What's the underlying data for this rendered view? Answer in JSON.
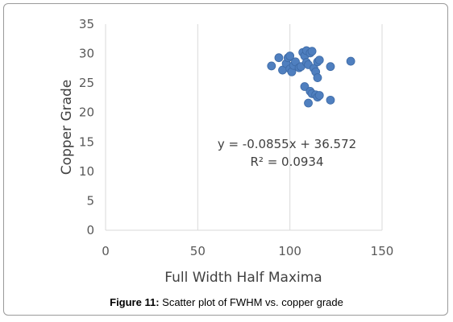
{
  "chart_data": {
    "type": "scatter",
    "xlabel": "Full Width Half Maxima",
    "ylabel": "Copper Grade",
    "xlim": [
      0,
      150
    ],
    "ylim": [
      0,
      35
    ],
    "x_ticks": [
      "0",
      "50",
      "100",
      "150"
    ],
    "y_ticks": [
      "0",
      "5",
      "10",
      "15",
      "20",
      "25",
      "30",
      "35"
    ],
    "grid": "vertical-major",
    "marker_color": "#4f7fbf",
    "equation": "y = -0.0855x + 36.572",
    "r_squared": "R² = 0.0934",
    "points": [
      {
        "x": 90,
        "y": 27.9
      },
      {
        "x": 94,
        "y": 29.3
      },
      {
        "x": 96,
        "y": 27.2
      },
      {
        "x": 98,
        "y": 28.3
      },
      {
        "x": 99,
        "y": 29.3
      },
      {
        "x": 100,
        "y": 29.6
      },
      {
        "x": 100,
        "y": 27.4
      },
      {
        "x": 101,
        "y": 26.9
      },
      {
        "x": 102,
        "y": 28.0
      },
      {
        "x": 103,
        "y": 28.6
      },
      {
        "x": 105,
        "y": 27.6
      },
      {
        "x": 106,
        "y": 27.8
      },
      {
        "x": 107,
        "y": 30.2
      },
      {
        "x": 108,
        "y": 29.6
      },
      {
        "x": 109,
        "y": 30.5
      },
      {
        "x": 109,
        "y": 28.5
      },
      {
        "x": 110,
        "y": 28.1
      },
      {
        "x": 111,
        "y": 30.1
      },
      {
        "x": 112,
        "y": 30.4
      },
      {
        "x": 113,
        "y": 27.5
      },
      {
        "x": 115,
        "y": 28.6
      },
      {
        "x": 116,
        "y": 28.9
      },
      {
        "x": 114,
        "y": 26.9
      },
      {
        "x": 115,
        "y": 25.9
      },
      {
        "x": 108,
        "y": 24.4
      },
      {
        "x": 111,
        "y": 23.6
      },
      {
        "x": 112,
        "y": 23.2
      },
      {
        "x": 114,
        "y": 23.0
      },
      {
        "x": 115,
        "y": 22.6
      },
      {
        "x": 116,
        "y": 22.9
      },
      {
        "x": 110,
        "y": 21.6
      },
      {
        "x": 122,
        "y": 27.8
      },
      {
        "x": 122,
        "y": 22.1
      },
      {
        "x": 133,
        "y": 28.7
      }
    ]
  },
  "caption": {
    "label": "Figure 11:",
    "text": " Scatter plot of FWHM vs. copper grade"
  }
}
